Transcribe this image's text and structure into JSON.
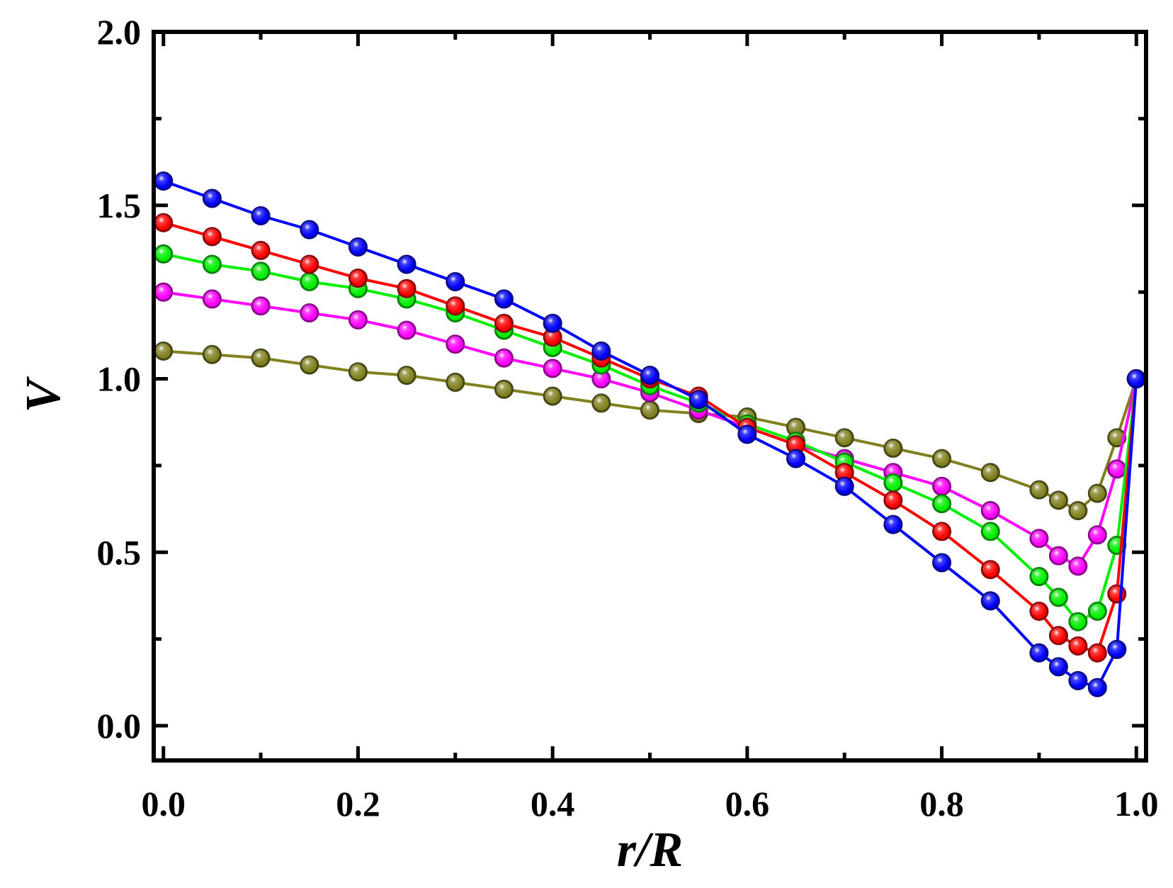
{
  "chart_data": {
    "type": "line",
    "title": "",
    "xlabel": "r/R",
    "ylabel": "V",
    "xlim": [
      -0.01,
      1.01
    ],
    "ylim": [
      -0.1,
      2.0
    ],
    "xticks": [
      0.0,
      0.2,
      0.4,
      0.6,
      0.8,
      1.0
    ],
    "xtick_labels": [
      "0.0",
      "0.2",
      "0.4",
      "0.6",
      "0.8",
      "1.0"
    ],
    "yticks": [
      0.0,
      0.5,
      1.0,
      1.5,
      2.0
    ],
    "ytick_labels": [
      "0.0",
      "0.5",
      "1.0",
      "1.5",
      "2.0"
    ],
    "minor_ticks": true,
    "grid": false,
    "legend": "none",
    "series": [
      {
        "color": "#808020",
        "x": [
          0.0,
          0.05,
          0.1,
          0.15,
          0.2,
          0.25,
          0.3,
          0.35,
          0.4,
          0.45,
          0.5,
          0.55,
          0.6,
          0.65,
          0.7,
          0.75,
          0.8,
          0.85,
          0.9,
          0.92,
          0.94,
          0.96,
          0.98,
          1.0
        ],
        "y": [
          1.08,
          1.07,
          1.06,
          1.04,
          1.02,
          1.01,
          0.99,
          0.97,
          0.95,
          0.93,
          0.91,
          0.9,
          0.89,
          0.86,
          0.83,
          0.8,
          0.77,
          0.73,
          0.68,
          0.65,
          0.62,
          0.67,
          0.83,
          1.0
        ]
      },
      {
        "color": "#ff00ff",
        "x": [
          0.0,
          0.05,
          0.1,
          0.15,
          0.2,
          0.25,
          0.3,
          0.35,
          0.4,
          0.45,
          0.5,
          0.55,
          0.6,
          0.65,
          0.7,
          0.75,
          0.8,
          0.85,
          0.9,
          0.92,
          0.94,
          0.96,
          0.98,
          1.0
        ],
        "y": [
          1.25,
          1.23,
          1.21,
          1.19,
          1.17,
          1.14,
          1.1,
          1.06,
          1.03,
          1.0,
          0.96,
          0.91,
          0.86,
          0.81,
          0.77,
          0.73,
          0.69,
          0.62,
          0.54,
          0.49,
          0.46,
          0.55,
          0.74,
          1.0
        ]
      },
      {
        "color": "#00ee00",
        "x": [
          0.0,
          0.05,
          0.1,
          0.15,
          0.2,
          0.25,
          0.3,
          0.35,
          0.4,
          0.45,
          0.5,
          0.55,
          0.6,
          0.65,
          0.7,
          0.75,
          0.8,
          0.85,
          0.9,
          0.92,
          0.94,
          0.96,
          0.98,
          1.0
        ],
        "y": [
          1.36,
          1.33,
          1.31,
          1.28,
          1.26,
          1.23,
          1.19,
          1.14,
          1.09,
          1.04,
          0.98,
          0.93,
          0.87,
          0.82,
          0.76,
          0.7,
          0.64,
          0.56,
          0.43,
          0.37,
          0.3,
          0.33,
          0.52,
          1.0
        ]
      },
      {
        "color": "#ff0000",
        "x": [
          0.0,
          0.05,
          0.1,
          0.15,
          0.2,
          0.25,
          0.3,
          0.35,
          0.4,
          0.45,
          0.5,
          0.55,
          0.6,
          0.65,
          0.7,
          0.75,
          0.8,
          0.85,
          0.9,
          0.92,
          0.94,
          0.96,
          0.98,
          1.0
        ],
        "y": [
          1.45,
          1.41,
          1.37,
          1.33,
          1.29,
          1.26,
          1.21,
          1.16,
          1.12,
          1.06,
          1.0,
          0.95,
          0.86,
          0.81,
          0.73,
          0.65,
          0.56,
          0.45,
          0.33,
          0.26,
          0.23,
          0.21,
          0.38,
          1.0
        ]
      },
      {
        "color": "#0000ff",
        "x": [
          0.0,
          0.05,
          0.1,
          0.15,
          0.2,
          0.25,
          0.3,
          0.35,
          0.4,
          0.45,
          0.5,
          0.55,
          0.6,
          0.65,
          0.7,
          0.75,
          0.8,
          0.85,
          0.9,
          0.92,
          0.94,
          0.96,
          0.98,
          1.0
        ],
        "y": [
          1.57,
          1.52,
          1.47,
          1.43,
          1.38,
          1.33,
          1.28,
          1.23,
          1.16,
          1.08,
          1.01,
          0.94,
          0.84,
          0.77,
          0.69,
          0.58,
          0.47,
          0.36,
          0.21,
          0.17,
          0.13,
          0.11,
          0.22,
          1.0
        ]
      }
    ]
  }
}
